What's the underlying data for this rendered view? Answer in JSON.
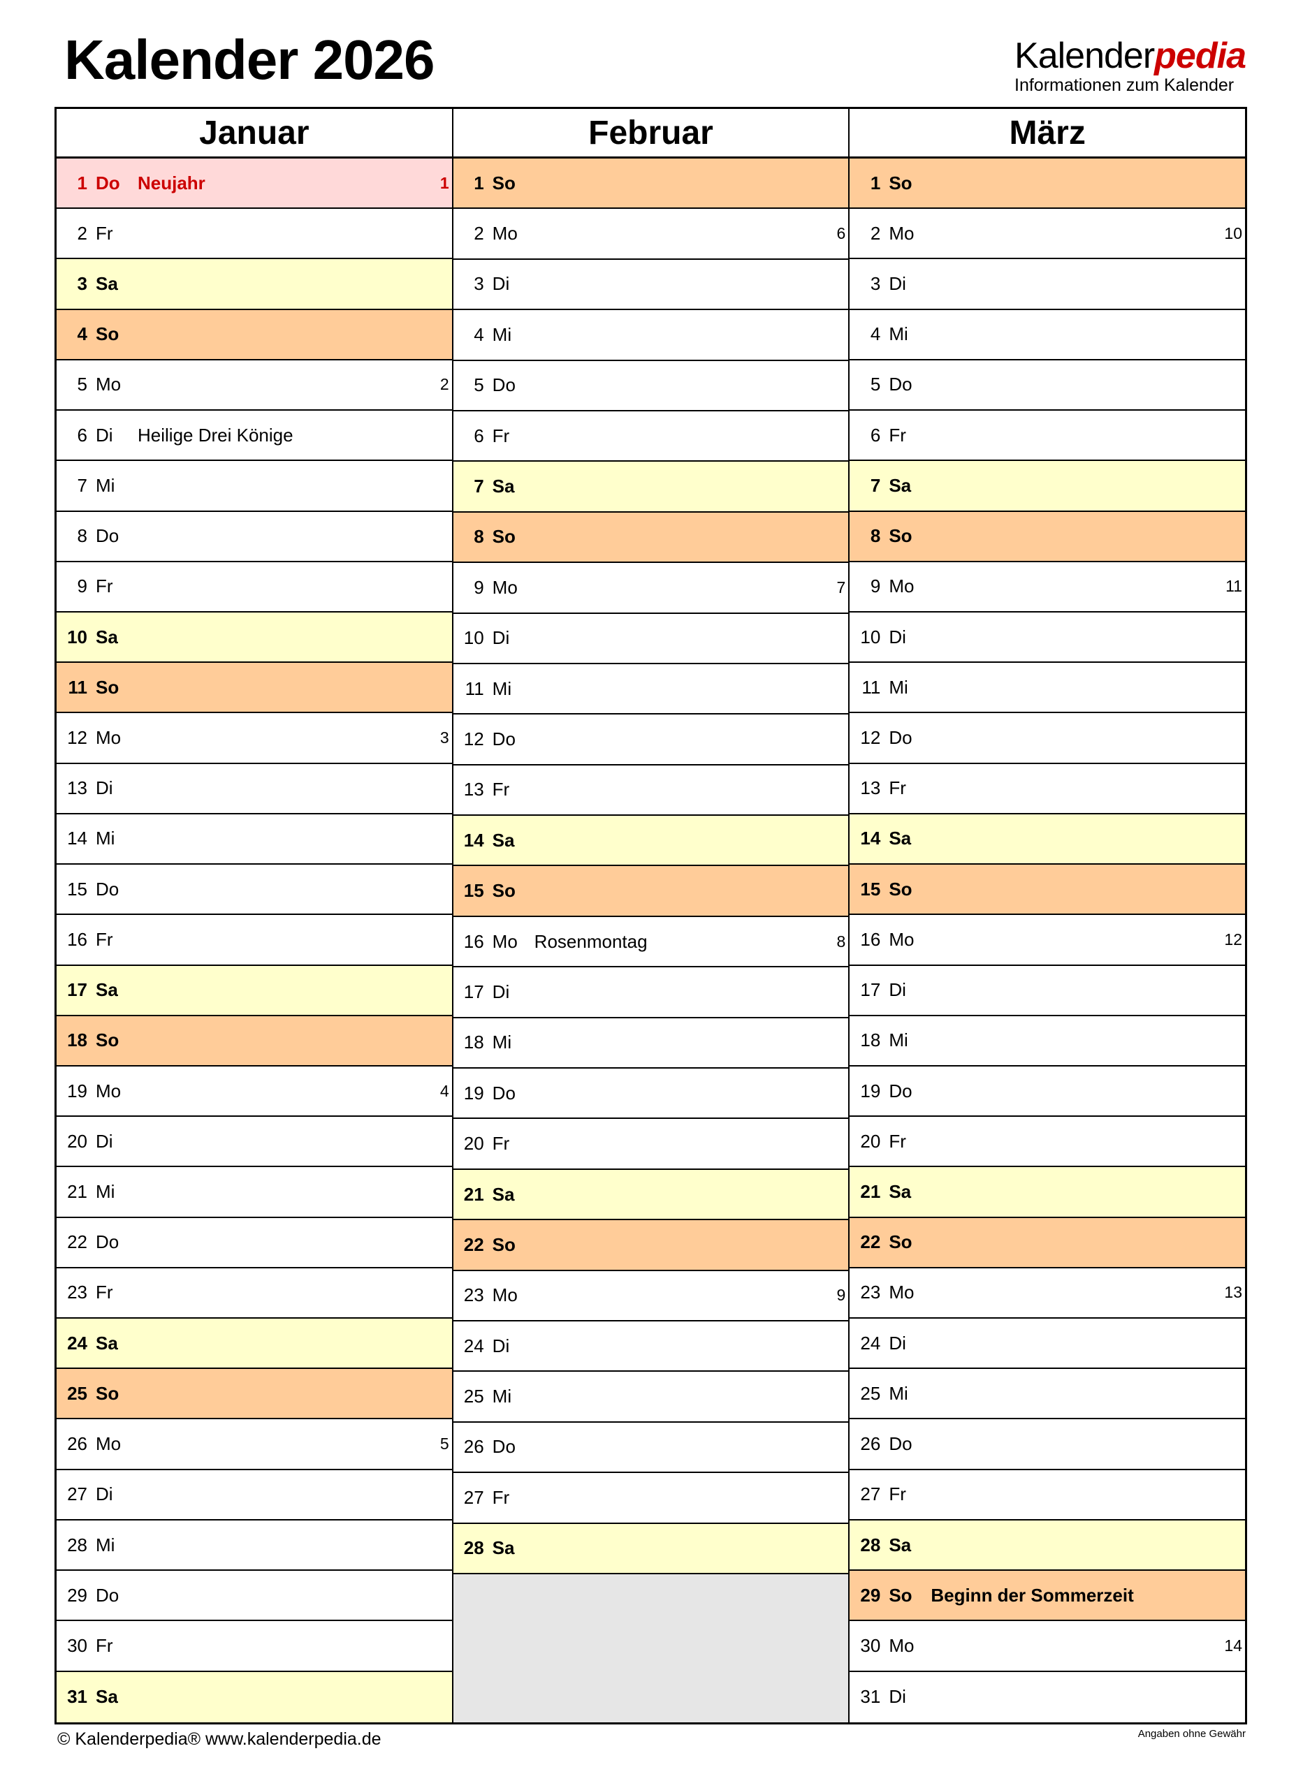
{
  "title": "Kalender 2026",
  "logo": {
    "part1": "Kalender",
    "part2": "pedia",
    "tagline": "Informationen zum Kalender"
  },
  "colors": {
    "saturday": "#ffffcc",
    "sunday": "#ffcc99",
    "holiday": "#ffd9d9",
    "holiday_text": "#cc0000",
    "empty": "#e6e6e6"
  },
  "months": [
    {
      "name": "Januar",
      "days": [
        [
          1,
          "Do",
          "hol",
          "Neujahr",
          1
        ],
        [
          2,
          "Fr",
          "",
          "",
          ""
        ],
        [
          3,
          "Sa",
          "sa",
          "",
          ""
        ],
        [
          4,
          "So",
          "so",
          "",
          ""
        ],
        [
          5,
          "Mo",
          "",
          "",
          2
        ],
        [
          6,
          "Di",
          "",
          "Heilige Drei Könige",
          ""
        ],
        [
          7,
          "Mi",
          "",
          "",
          ""
        ],
        [
          8,
          "Do",
          "",
          "",
          ""
        ],
        [
          9,
          "Fr",
          "",
          "",
          ""
        ],
        [
          10,
          "Sa",
          "sa",
          "",
          ""
        ],
        [
          11,
          "So",
          "so",
          "",
          ""
        ],
        [
          12,
          "Mo",
          "",
          "",
          3
        ],
        [
          13,
          "Di",
          "",
          "",
          ""
        ],
        [
          14,
          "Mi",
          "",
          "",
          ""
        ],
        [
          15,
          "Do",
          "",
          "",
          ""
        ],
        [
          16,
          "Fr",
          "",
          "",
          ""
        ],
        [
          17,
          "Sa",
          "sa",
          "",
          ""
        ],
        [
          18,
          "So",
          "so",
          "",
          ""
        ],
        [
          19,
          "Mo",
          "",
          "",
          4
        ],
        [
          20,
          "Di",
          "",
          "",
          ""
        ],
        [
          21,
          "Mi",
          "",
          "",
          ""
        ],
        [
          22,
          "Do",
          "",
          "",
          ""
        ],
        [
          23,
          "Fr",
          "",
          "",
          ""
        ],
        [
          24,
          "Sa",
          "sa",
          "",
          ""
        ],
        [
          25,
          "So",
          "so",
          "",
          ""
        ],
        [
          26,
          "Mo",
          "",
          "",
          5
        ],
        [
          27,
          "Di",
          "",
          "",
          ""
        ],
        [
          28,
          "Mi",
          "",
          "",
          ""
        ],
        [
          29,
          "Do",
          "",
          "",
          ""
        ],
        [
          30,
          "Fr",
          "",
          "",
          ""
        ],
        [
          31,
          "Sa",
          "sa",
          "",
          ""
        ]
      ]
    },
    {
      "name": "Februar",
      "days": [
        [
          1,
          "So",
          "so",
          "",
          ""
        ],
        [
          2,
          "Mo",
          "",
          "",
          6
        ],
        [
          3,
          "Di",
          "",
          "",
          ""
        ],
        [
          4,
          "Mi",
          "",
          "",
          ""
        ],
        [
          5,
          "Do",
          "",
          "",
          ""
        ],
        [
          6,
          "Fr",
          "",
          "",
          ""
        ],
        [
          7,
          "Sa",
          "sa",
          "",
          ""
        ],
        [
          8,
          "So",
          "so",
          "",
          ""
        ],
        [
          9,
          "Mo",
          "",
          "",
          7
        ],
        [
          10,
          "Di",
          "",
          "",
          ""
        ],
        [
          11,
          "Mi",
          "",
          "",
          ""
        ],
        [
          12,
          "Do",
          "",
          "",
          ""
        ],
        [
          13,
          "Fr",
          "",
          "",
          ""
        ],
        [
          14,
          "Sa",
          "sa",
          "",
          ""
        ],
        [
          15,
          "So",
          "so",
          "",
          ""
        ],
        [
          16,
          "Mo",
          "",
          "Rosenmontag",
          8
        ],
        [
          17,
          "Di",
          "",
          "",
          ""
        ],
        [
          18,
          "Mi",
          "",
          "",
          ""
        ],
        [
          19,
          "Do",
          "",
          "",
          ""
        ],
        [
          20,
          "Fr",
          "",
          "",
          ""
        ],
        [
          21,
          "Sa",
          "sa",
          "",
          ""
        ],
        [
          22,
          "So",
          "so",
          "",
          ""
        ],
        [
          23,
          "Mo",
          "",
          "",
          9
        ],
        [
          24,
          "Di",
          "",
          "",
          ""
        ],
        [
          25,
          "Mi",
          "",
          "",
          ""
        ],
        [
          26,
          "Do",
          "",
          "",
          ""
        ],
        [
          27,
          "Fr",
          "",
          "",
          ""
        ],
        [
          28,
          "Sa",
          "sa",
          "",
          ""
        ]
      ]
    },
    {
      "name": "März",
      "days": [
        [
          1,
          "So",
          "so",
          "",
          ""
        ],
        [
          2,
          "Mo",
          "",
          "",
          10
        ],
        [
          3,
          "Di",
          "",
          "",
          ""
        ],
        [
          4,
          "Mi",
          "",
          "",
          ""
        ],
        [
          5,
          "Do",
          "",
          "",
          ""
        ],
        [
          6,
          "Fr",
          "",
          "",
          ""
        ],
        [
          7,
          "Sa",
          "sa",
          "",
          ""
        ],
        [
          8,
          "So",
          "so",
          "",
          ""
        ],
        [
          9,
          "Mo",
          "",
          "",
          11
        ],
        [
          10,
          "Di",
          "",
          "",
          ""
        ],
        [
          11,
          "Mi",
          "",
          "",
          ""
        ],
        [
          12,
          "Do",
          "",
          "",
          ""
        ],
        [
          13,
          "Fr",
          "",
          "",
          ""
        ],
        [
          14,
          "Sa",
          "sa",
          "",
          ""
        ],
        [
          15,
          "So",
          "so",
          "",
          ""
        ],
        [
          16,
          "Mo",
          "",
          "",
          12
        ],
        [
          17,
          "Di",
          "",
          "",
          ""
        ],
        [
          18,
          "Mi",
          "",
          "",
          ""
        ],
        [
          19,
          "Do",
          "",
          "",
          ""
        ],
        [
          20,
          "Fr",
          "",
          "",
          ""
        ],
        [
          21,
          "Sa",
          "sa",
          "",
          ""
        ],
        [
          22,
          "So",
          "so",
          "",
          ""
        ],
        [
          23,
          "Mo",
          "",
          "",
          13
        ],
        [
          24,
          "Di",
          "",
          "",
          ""
        ],
        [
          25,
          "Mi",
          "",
          "",
          ""
        ],
        [
          26,
          "Do",
          "",
          "",
          ""
        ],
        [
          27,
          "Fr",
          "",
          "",
          ""
        ],
        [
          28,
          "Sa",
          "sa",
          "",
          ""
        ],
        [
          29,
          "So",
          "so",
          "Beginn der Sommerzeit",
          ""
        ],
        [
          30,
          "Mo",
          "",
          "",
          14
        ],
        [
          31,
          "Di",
          "",
          "",
          ""
        ]
      ]
    }
  ],
  "footer": {
    "copyright": "© Kalenderpedia®   www.kalenderpedia.de",
    "disclaimer": "Angaben ohne Gewähr"
  }
}
